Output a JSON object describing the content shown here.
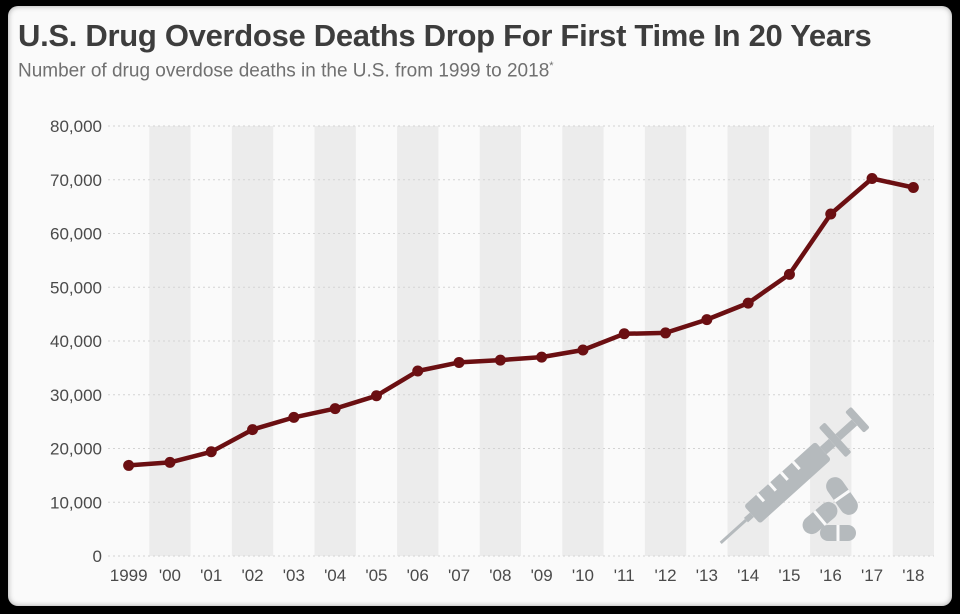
{
  "header": {
    "title": "U.S. Drug Overdose Deaths Drop For First Time In 20 Years",
    "subtitle": "Number of drug overdose deaths in the U.S. from 1999 to 2018",
    "subtitle_mark": "*"
  },
  "colors": {
    "line": "#6b0f12",
    "band": "#ececec",
    "icon": "#b5babd"
  },
  "icon": "syringe-and-pills-icon",
  "chart_data": {
    "type": "line",
    "title": "U.S. Drug Overdose Deaths Drop For First Time In 20 Years",
    "subtitle": "Number of drug overdose deaths in the U.S. from 1999 to 2018*",
    "xlabel": "",
    "ylabel": "",
    "categories": [
      "1999",
      "'00",
      "'01",
      "'02",
      "'03",
      "'04",
      "'05",
      "'06",
      "'07",
      "'08",
      "'09",
      "'10",
      "'11",
      "'12",
      "'13",
      "'14",
      "'15",
      "'16",
      "'17",
      "'18"
    ],
    "series": [
      {
        "values": [
          16849,
          17415,
          19394,
          23518,
          25785,
          27424,
          29813,
          34425,
          36010,
          36450,
          37004,
          38329,
          41340,
          41502,
          43982,
          47055,
          52404,
          63632,
          70237,
          68557
        ]
      }
    ],
    "ylim": [
      0,
      80000
    ],
    "yticks": [
      "0",
      "10,000",
      "20,000",
      "30,000",
      "40,000",
      "50,000",
      "60,000",
      "70,000",
      "80,000"
    ],
    "grid": true,
    "legend": "none"
  }
}
